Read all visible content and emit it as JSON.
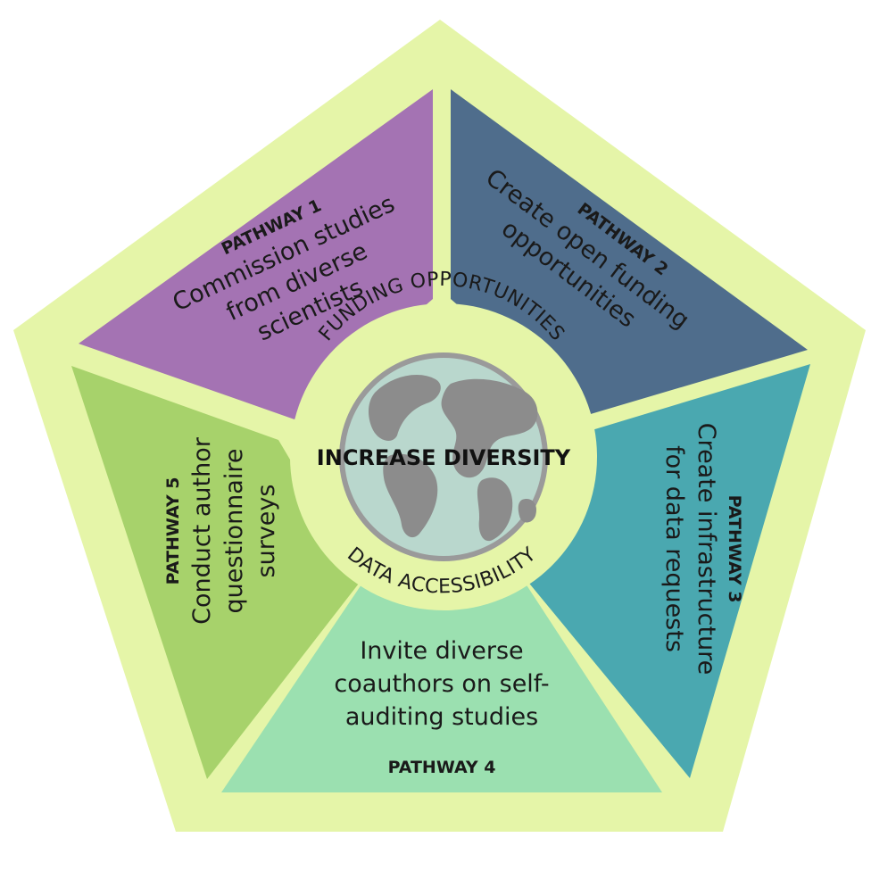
{
  "diagram": {
    "center_title": "INCREASE DIVERSITY",
    "ring_top": "FUNDING OPPORTUNITIES",
    "ring_bottom": "DATA ACCESSIBILITY",
    "colors": {
      "outer_pentagon": "#e5f5a8",
      "ring": "#e5f5a8",
      "pathway_1": "#a473b3",
      "pathway_2": "#4f6d8c",
      "pathway_3": "#4aa8b0",
      "pathway_4": "#9be0b0",
      "pathway_5": "#a7d26b",
      "globe_ocean": "#b9d7cd",
      "globe_land": "#8c8c8c",
      "globe_rim": "#9a9a9a"
    },
    "pathways": [
      {
        "heading": "PATHWAY 1",
        "lines": [
          "Commission studies",
          "from diverse",
          "scientists"
        ]
      },
      {
        "heading": "PATHWAY 2",
        "lines": [
          "Create open funding",
          "opportunities"
        ]
      },
      {
        "heading": "PATHWAY 3",
        "lines": [
          "Create infrastructure",
          "for data requests"
        ]
      },
      {
        "heading": "PATHWAY 4",
        "lines": [
          "Invite diverse",
          "coauthors on self-",
          "auditing studies"
        ]
      },
      {
        "heading": "PATHWAY 5",
        "lines": [
          "Conduct author",
          "questionnaire",
          "surveys"
        ]
      }
    ]
  }
}
